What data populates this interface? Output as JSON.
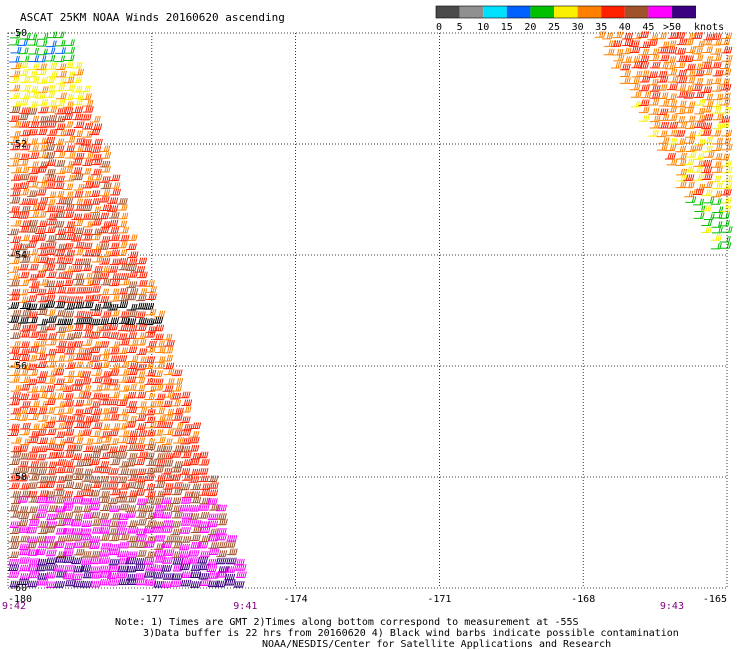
{
  "chart_data": {
    "type": "scatter",
    "title": "ASCAT 25KM NOAA Winds 20160620 ascending",
    "xlim": [
      -180,
      -165
    ],
    "ylim": [
      -60,
      -50
    ],
    "x_ticks": [
      "-180",
      "-177",
      "-174",
      "-171",
      "-168",
      "-165"
    ],
    "y_ticks": [
      "-50",
      "-52",
      "-54",
      "-56",
      "-58",
      "-60"
    ],
    "grid": true,
    "time_labels": [
      {
        "label": "9:42",
        "lon": -180
      },
      {
        "label": "9:41",
        "lon": -175.3
      },
      {
        "label": "9:43",
        "lon": -166.4
      }
    ],
    "colorbar": {
      "unit_label": "knots",
      "tick_labels": [
        "0",
        "5",
        "10",
        "15",
        "20",
        "25",
        "30",
        "35",
        "40",
        "45",
        ">50"
      ],
      "colors": [
        "#4a4a4a",
        "#909090",
        "#00e0ff",
        "#0060ff",
        "#00c000",
        "#f8f000",
        "#ff8000",
        "#ff2000",
        "#a0522d",
        "#ff00ff",
        "#3a0080"
      ]
    },
    "swaths": [
      {
        "name": "west",
        "polygon": [
          [
            -180,
            -50
          ],
          [
            -178.8,
            -50
          ],
          [
            -175.0,
            -60
          ],
          [
            -180,
            -60
          ]
        ],
        "bands": [
          {
            "lat": [
              -50.6,
              -50.0
            ],
            "speed": [
              18,
              24
            ]
          },
          {
            "lat": [
              -51.4,
              -50.6
            ],
            "speed": [
              25,
              32
            ]
          },
          {
            "lat": [
              -53.0,
              -51.4
            ],
            "speed": [
              30,
              42
            ]
          },
          {
            "lat": [
              -55.5,
              -53.0
            ],
            "speed": [
              33,
              42
            ]
          },
          {
            "lat": [
              -57.5,
              -55.5
            ],
            "speed": [
              30,
              40
            ]
          },
          {
            "lat": [
              -58.4,
              -57.5
            ],
            "speed": [
              36,
              44
            ]
          },
          {
            "lat": [
              -59.4,
              -58.4
            ],
            "speed": [
              42,
              48
            ]
          },
          {
            "lat": [
              -60.0,
              -59.4
            ],
            "speed": [
              45,
              55
            ]
          }
        ],
        "contaminated_rows_lat": [
          -55.0,
          -55.15
        ]
      },
      {
        "name": "east",
        "polygon": [
          [
            -167.8,
            -50
          ],
          [
            -165,
            -50
          ],
          [
            -165,
            -54
          ],
          [
            -165.2,
            -54
          ]
        ],
        "bands": [
          {
            "lat": [
              -51.2,
              -50.0
            ],
            "speed": [
              30,
              38
            ]
          },
          {
            "lat": [
              -53.0,
              -51.2
            ],
            "speed": [
              28,
              36
            ]
          },
          {
            "lat": [
              -54.0,
              -53.0
            ],
            "speed": [
              20,
              28
            ]
          }
        ],
        "contaminated_rows_lat": []
      }
    ]
  },
  "notes": [
    "Note: 1) Times are GMT 2)Times along bottom correspond to measurement at -55S",
    "3)Data buffer is 22 hrs from 20160620 4) Black wind barbs indicate possible contamination",
    "NOAA/NESDIS/Center for Satellite Applications and Research"
  ]
}
